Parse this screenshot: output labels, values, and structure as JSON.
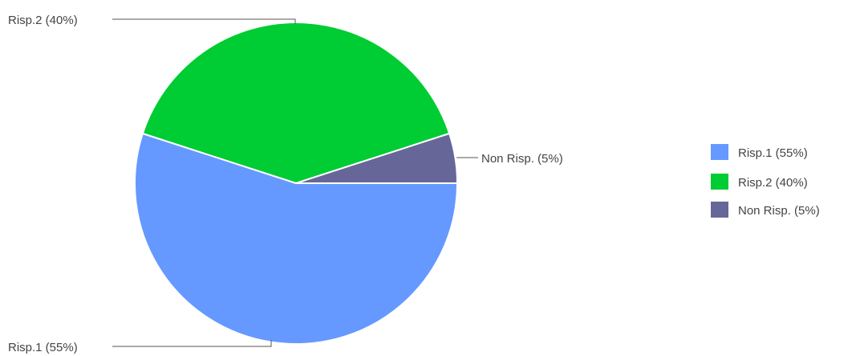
{
  "chart_data": {
    "type": "pie",
    "slices": [
      {
        "label": "Risp.1 (55%)",
        "value": 55,
        "color": "#6699ff"
      },
      {
        "label": "Risp.2 (40%)",
        "value": 40,
        "color": "#00cc33"
      },
      {
        "label": "Non Risp. (5%)",
        "value": 5,
        "color": "#666699"
      }
    ],
    "start_angle_deg": 0,
    "direction": "clockwise",
    "legend_position": "right"
  }
}
